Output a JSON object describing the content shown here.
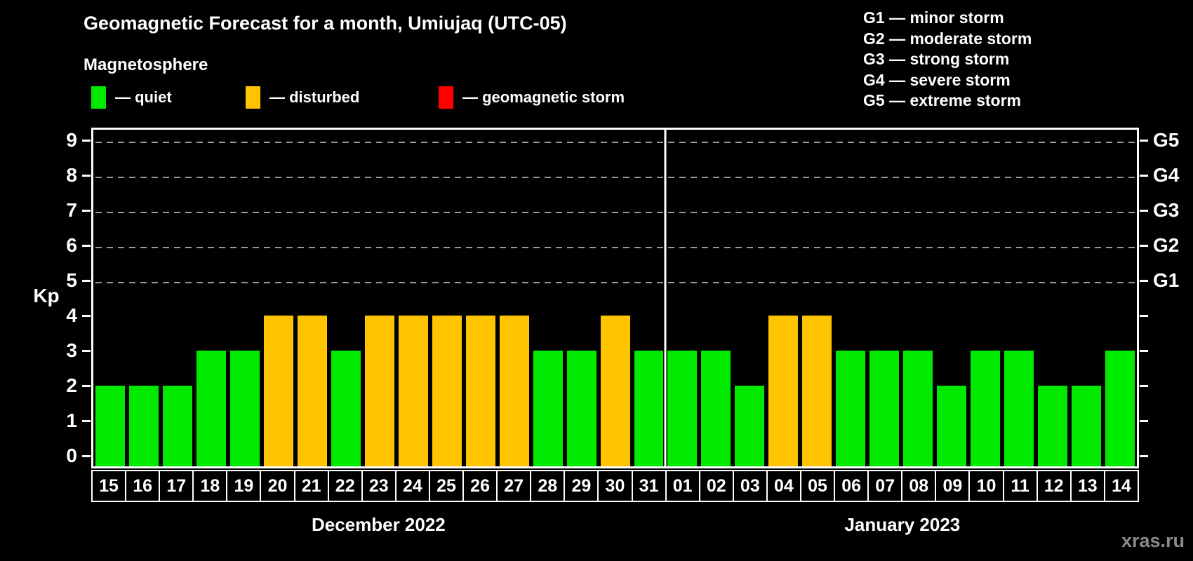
{
  "title": "Geomagnetic Forecast for a month, Umiujaq (UTC-05)",
  "subtitle": "Magnetosphere",
  "watermark": "xras.ru",
  "colors": {
    "quiet": "#00ea00",
    "disturbed": "#ffc300",
    "storm": "#ff0000",
    "axis": "#ffffff",
    "grid": "#9a9a9a",
    "background": "#000000",
    "watermark_text": "#8a8a8a"
  },
  "legend": {
    "items": [
      {
        "key": "quiet",
        "label": "— quiet"
      },
      {
        "key": "disturbed",
        "label": "— disturbed"
      },
      {
        "key": "storm",
        "label": "— geomagnetic storm"
      }
    ]
  },
  "g_legend": [
    "G1 — minor storm",
    "G2 — moderate storm",
    "G3 — strong storm",
    "G4 — severe storm",
    "G5 — extreme storm"
  ],
  "chart_data": {
    "type": "bar",
    "ylabel": "Kp",
    "ylim": [
      0,
      9
    ],
    "yticks": [
      0,
      1,
      2,
      3,
      4,
      5,
      6,
      7,
      8,
      9
    ],
    "gridlines_at": [
      5,
      6,
      7,
      8,
      9
    ],
    "grid": "dashed",
    "right_axis": [
      {
        "kp": 5,
        "label": "G1"
      },
      {
        "kp": 6,
        "label": "G2"
      },
      {
        "kp": 7,
        "label": "G3"
      },
      {
        "kp": 8,
        "label": "G4"
      },
      {
        "kp": 9,
        "label": "G5"
      }
    ],
    "months": [
      {
        "label": "December 2022",
        "days": [
          {
            "day": "15",
            "kp": 2,
            "state": "quiet"
          },
          {
            "day": "16",
            "kp": 2,
            "state": "quiet"
          },
          {
            "day": "17",
            "kp": 2,
            "state": "quiet"
          },
          {
            "day": "18",
            "kp": 3,
            "state": "quiet"
          },
          {
            "day": "19",
            "kp": 3,
            "state": "quiet"
          },
          {
            "day": "20",
            "kp": 4,
            "state": "disturbed"
          },
          {
            "day": "21",
            "kp": 4,
            "state": "disturbed"
          },
          {
            "day": "22",
            "kp": 3,
            "state": "quiet"
          },
          {
            "day": "23",
            "kp": 4,
            "state": "disturbed"
          },
          {
            "day": "24",
            "kp": 4,
            "state": "disturbed"
          },
          {
            "day": "25",
            "kp": 4,
            "state": "disturbed"
          },
          {
            "day": "26",
            "kp": 4,
            "state": "disturbed"
          },
          {
            "day": "27",
            "kp": 4,
            "state": "disturbed"
          },
          {
            "day": "28",
            "kp": 3,
            "state": "quiet"
          },
          {
            "day": "29",
            "kp": 3,
            "state": "quiet"
          },
          {
            "day": "30",
            "kp": 4,
            "state": "disturbed"
          },
          {
            "day": "31",
            "kp": 3,
            "state": "quiet"
          }
        ]
      },
      {
        "label": "January 2023",
        "days": [
          {
            "day": "01",
            "kp": 3,
            "state": "quiet"
          },
          {
            "day": "02",
            "kp": 3,
            "state": "quiet"
          },
          {
            "day": "03",
            "kp": 2,
            "state": "quiet"
          },
          {
            "day": "04",
            "kp": 4,
            "state": "disturbed"
          },
          {
            "day": "05",
            "kp": 4,
            "state": "disturbed"
          },
          {
            "day": "06",
            "kp": 3,
            "state": "quiet"
          },
          {
            "day": "07",
            "kp": 3,
            "state": "quiet"
          },
          {
            "day": "08",
            "kp": 3,
            "state": "quiet"
          },
          {
            "day": "09",
            "kp": 2,
            "state": "quiet"
          },
          {
            "day": "10",
            "kp": 3,
            "state": "quiet"
          },
          {
            "day": "11",
            "kp": 3,
            "state": "quiet"
          },
          {
            "day": "12",
            "kp": 2,
            "state": "quiet"
          },
          {
            "day": "13",
            "kp": 2,
            "state": "quiet"
          },
          {
            "day": "14",
            "kp": 3,
            "state": "quiet"
          }
        ]
      }
    ]
  }
}
